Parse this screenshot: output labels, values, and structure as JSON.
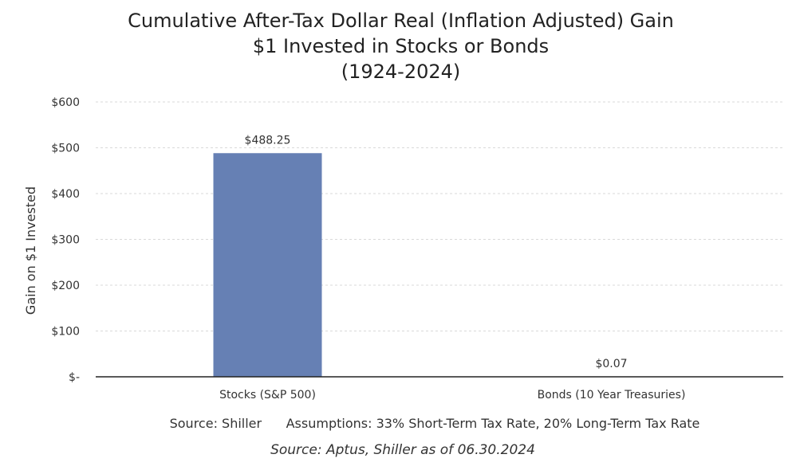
{
  "chart_data": {
    "type": "bar",
    "title": [
      "Cumulative After-Tax Dollar Real (Inflation Adjusted) Gain",
      "$1 Invested in Stocks or Bonds",
      "(1924-2024)"
    ],
    "categories": [
      "Stocks (S&P 500)",
      "Bonds (10 Year Treasuries)"
    ],
    "values": [
      488.25,
      0.07
    ],
    "data_labels": [
      "$488.25",
      "$0.07"
    ],
    "ylabel": "Gain on $1 Invested",
    "ylim": [
      0,
      600
    ],
    "yticks": [
      0,
      100,
      200,
      300,
      400,
      500,
      600
    ],
    "ytick_labels": [
      "$-",
      "$100",
      "$200",
      "$300",
      "$400",
      "$500",
      "$600"
    ],
    "grid": true,
    "bar_color": "#6680B4",
    "source_note": "Source: Shiller",
    "assumptions_note": "Assumptions: 33% Short-Term Tax Rate, 20% Long-Term Tax Rate",
    "credit": "Source: Aptus, Shiller as of 06.30.2024"
  }
}
